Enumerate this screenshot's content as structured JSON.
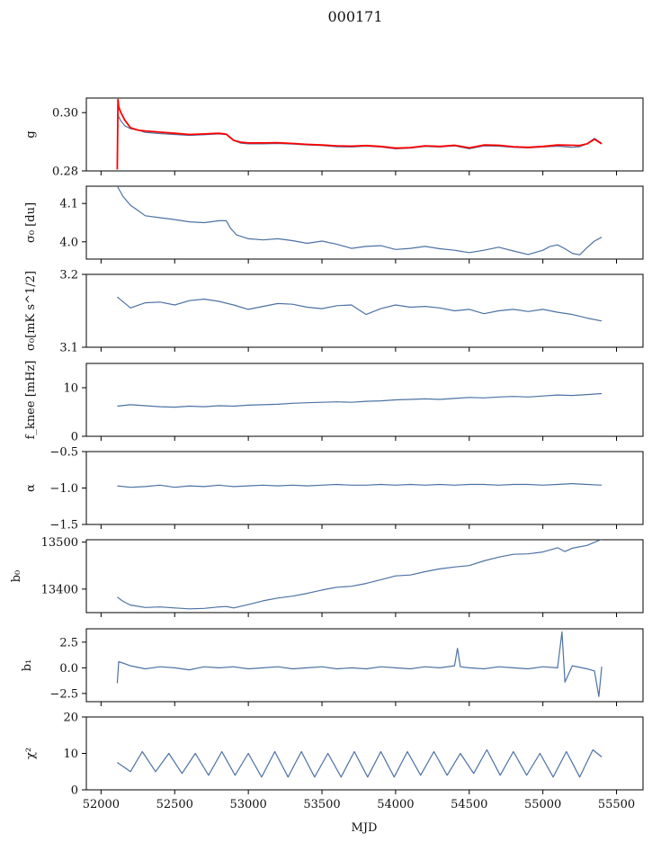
{
  "figure": {
    "title": "000171",
    "xlabel": "MJD",
    "colors": {
      "series": "#4c72a4",
      "reference": "#ff0000"
    }
  },
  "chart_data": [
    {
      "type": "line",
      "id": "g",
      "ylabel": "g",
      "ylim": [
        0.28,
        0.305
      ],
      "yticks": [
        0.28,
        0.3
      ],
      "yticklabels": [
        "0.28",
        "0.30"
      ],
      "xlim": [
        51900,
        55680
      ],
      "xticks": [
        52000,
        52500,
        53000,
        53500,
        54000,
        54500,
        55000,
        55500
      ],
      "series": [
        {
          "color": "#4c72a4",
          "x": [
            52110,
            52130,
            52160,
            52200,
            52250,
            52300,
            52400,
            52500,
            52600,
            52700,
            52800,
            52850,
            52900,
            52950,
            53000,
            53100,
            53200,
            53300,
            53400,
            53500,
            53600,
            53700,
            53800,
            53900,
            54000,
            54100,
            54200,
            54300,
            54400,
            54500,
            54600,
            54700,
            54800,
            54900,
            55000,
            55100,
            55200,
            55250,
            55300,
            55350,
            55400
          ],
          "y": [
            0.2995,
            0.2975,
            0.2955,
            0.2945,
            0.294,
            0.2932,
            0.2928,
            0.2925,
            0.2922,
            0.2924,
            0.2927,
            0.2925,
            0.2905,
            0.2895,
            0.2893,
            0.2893,
            0.2894,
            0.2892,
            0.2889,
            0.2887,
            0.2883,
            0.2882,
            0.2885,
            0.2882,
            0.2876,
            0.2878,
            0.2884,
            0.2882,
            0.2886,
            0.2876,
            0.2886,
            0.2885,
            0.2881,
            0.2879,
            0.2882,
            0.2885,
            0.2881,
            0.2883,
            0.2893,
            0.2912,
            0.2895
          ]
        },
        {
          "color": "#ff0000",
          "x": [
            52110,
            52115,
            52120,
            52130,
            52160,
            52200,
            52250,
            52300,
            52400,
            52500,
            52600,
            52700,
            52800,
            52850,
            52900,
            52950,
            53000,
            53100,
            53200,
            53300,
            53400,
            53500,
            53600,
            53700,
            53800,
            53900,
            54000,
            54100,
            54200,
            54300,
            54400,
            54500,
            54600,
            54700,
            54800,
            54900,
            55000,
            55100,
            55200,
            55250,
            55300,
            55350,
            55400
          ],
          "y": [
            0.2805,
            0.3045,
            0.302,
            0.3005,
            0.2975,
            0.2948,
            0.294,
            0.2937,
            0.2933,
            0.2929,
            0.2925,
            0.2927,
            0.2929,
            0.2926,
            0.2905,
            0.2898,
            0.2896,
            0.2896,
            0.2897,
            0.2894,
            0.2891,
            0.2889,
            0.2886,
            0.2885,
            0.2887,
            0.2884,
            0.2878,
            0.288,
            0.2886,
            0.2884,
            0.2888,
            0.2879,
            0.2889,
            0.2888,
            0.2883,
            0.2881,
            0.2884,
            0.2889,
            0.2888,
            0.2887,
            0.2893,
            0.2909,
            0.2893
          ]
        }
      ]
    },
    {
      "type": "line",
      "id": "sigma0",
      "ylabel": "σ₀ [du]",
      "ylim": [
        3.955,
        4.145
      ],
      "yticks": [
        4.0,
        4.1
      ],
      "yticklabels": [
        "4.0",
        "4.1"
      ],
      "xlim": [
        51900,
        55680
      ],
      "xticks": [
        52000,
        52500,
        53000,
        53500,
        54000,
        54500,
        55000,
        55500
      ],
      "series": [
        {
          "color": "#4c72a4",
          "x": [
            52110,
            52150,
            52200,
            52250,
            52300,
            52400,
            52500,
            52600,
            52700,
            52800,
            52850,
            52880,
            52920,
            53000,
            53100,
            53200,
            53300,
            53400,
            53500,
            53600,
            53700,
            53800,
            53900,
            54000,
            54100,
            54200,
            54300,
            54400,
            54500,
            54600,
            54700,
            54800,
            54900,
            55000,
            55050,
            55100,
            55150,
            55200,
            55250,
            55300,
            55350,
            55400
          ],
          "y": [
            4.145,
            4.118,
            4.095,
            4.082,
            4.068,
            4.063,
            4.058,
            4.052,
            4.05,
            4.055,
            4.055,
            4.035,
            4.018,
            4.008,
            4.005,
            4.008,
            4.003,
            3.996,
            4.002,
            3.994,
            3.983,
            3.988,
            3.99,
            3.98,
            3.983,
            3.988,
            3.982,
            3.978,
            3.972,
            3.978,
            3.986,
            3.976,
            3.967,
            3.978,
            3.988,
            3.992,
            3.982,
            3.97,
            3.966,
            3.985,
            4.002,
            4.012
          ]
        }
      ]
    },
    {
      "type": "line",
      "id": "sigma0-mk",
      "ylabel": "σ₀[mK s^1/2]",
      "ylim": [
        3.1,
        3.2
      ],
      "yticks": [
        3.1,
        3.2
      ],
      "yticklabels": [
        "3.1",
        "3.2"
      ],
      "xlim": [
        51900,
        55680
      ],
      "xticks": [
        52000,
        52500,
        53000,
        53500,
        54000,
        54500,
        55000,
        55500
      ],
      "series": [
        {
          "color": "#4c72a4",
          "x": [
            52110,
            52200,
            52300,
            52400,
            52500,
            52600,
            52700,
            52800,
            52900,
            53000,
            53100,
            53200,
            53300,
            53400,
            53500,
            53600,
            53700,
            53800,
            53900,
            54000,
            54100,
            54200,
            54300,
            54400,
            54500,
            54600,
            54700,
            54800,
            54900,
            55000,
            55100,
            55200,
            55300,
            55400
          ],
          "y": [
            3.169,
            3.154,
            3.161,
            3.162,
            3.158,
            3.164,
            3.166,
            3.163,
            3.158,
            3.152,
            3.156,
            3.16,
            3.159,
            3.155,
            3.153,
            3.157,
            3.158,
            3.145,
            3.153,
            3.158,
            3.155,
            3.156,
            3.154,
            3.15,
            3.152,
            3.146,
            3.15,
            3.152,
            3.149,
            3.152,
            3.148,
            3.145,
            3.14,
            3.136
          ]
        }
      ]
    },
    {
      "type": "line",
      "id": "fknee",
      "ylabel": "f_knee [mHz]",
      "ylim": [
        0,
        15
      ],
      "yticks": [
        0,
        10
      ],
      "yticklabels": [
        "0",
        "10"
      ],
      "xlim": [
        51900,
        55680
      ],
      "xticks": [
        52000,
        52500,
        53000,
        53500,
        54000,
        54500,
        55000,
        55500
      ],
      "series": [
        {
          "color": "#4c72a4",
          "x": [
            52110,
            52200,
            52300,
            52400,
            52500,
            52600,
            52700,
            52800,
            52900,
            53000,
            53100,
            53200,
            53300,
            53400,
            53500,
            53600,
            53700,
            53800,
            53900,
            54000,
            54100,
            54200,
            54300,
            54400,
            54500,
            54600,
            54700,
            54800,
            54900,
            55000,
            55100,
            55200,
            55300,
            55400
          ],
          "y": [
            6.2,
            6.5,
            6.3,
            6.1,
            6.0,
            6.2,
            6.1,
            6.3,
            6.2,
            6.4,
            6.5,
            6.6,
            6.8,
            6.9,
            7.0,
            7.1,
            7.0,
            7.2,
            7.3,
            7.5,
            7.6,
            7.7,
            7.6,
            7.8,
            8.0,
            7.9,
            8.1,
            8.2,
            8.1,
            8.3,
            8.5,
            8.4,
            8.6,
            8.8
          ]
        }
      ]
    },
    {
      "type": "line",
      "id": "alpha",
      "ylabel": "α",
      "ylim": [
        -1.5,
        -0.5
      ],
      "yticks": [
        -1.5,
        -1.0,
        -0.5
      ],
      "yticklabels": [
        "−1.5",
        "−1.0",
        "−0.5"
      ],
      "xlim": [
        51900,
        55680
      ],
      "xticks": [
        52000,
        52500,
        53000,
        53500,
        54000,
        54500,
        55000,
        55500
      ],
      "series": [
        {
          "color": "#4c72a4",
          "x": [
            52110,
            52200,
            52300,
            52400,
            52500,
            52600,
            52700,
            52800,
            52900,
            53000,
            53100,
            53200,
            53300,
            53400,
            53500,
            53600,
            53700,
            53800,
            53900,
            54000,
            54100,
            54200,
            54300,
            54400,
            54500,
            54600,
            54700,
            54800,
            54900,
            55000,
            55100,
            55200,
            55300,
            55400
          ],
          "y": [
            -0.97,
            -0.99,
            -0.98,
            -0.96,
            -0.99,
            -0.97,
            -0.98,
            -0.96,
            -0.98,
            -0.97,
            -0.96,
            -0.97,
            -0.96,
            -0.97,
            -0.96,
            -0.95,
            -0.96,
            -0.96,
            -0.95,
            -0.96,
            -0.95,
            -0.96,
            -0.95,
            -0.96,
            -0.95,
            -0.95,
            -0.96,
            -0.95,
            -0.95,
            -0.96,
            -0.95,
            -0.94,
            -0.95,
            -0.96
          ]
        }
      ]
    },
    {
      "type": "line",
      "id": "b0",
      "ylabel": "b₀",
      "ylim": [
        13350,
        13505
      ],
      "yticks": [
        13400,
        13500
      ],
      "yticklabels": [
        "13400",
        "13500"
      ],
      "xlim": [
        51900,
        55680
      ],
      "xticks": [
        52000,
        52500,
        53000,
        53500,
        54000,
        54500,
        55000,
        55500
      ],
      "series": [
        {
          "color": "#4c72a4",
          "x": [
            52110,
            52150,
            52200,
            52300,
            52400,
            52500,
            52600,
            52700,
            52800,
            52850,
            52900,
            53000,
            53100,
            53200,
            53300,
            53400,
            53500,
            53600,
            53700,
            53800,
            53900,
            54000,
            54100,
            54200,
            54300,
            54400,
            54500,
            54600,
            54700,
            54800,
            54900,
            55000,
            55100,
            55150,
            55200,
            55300,
            55400
          ],
          "y": [
            13383,
            13374,
            13366,
            13361,
            13362,
            13360,
            13358,
            13359,
            13362,
            13363,
            13360,
            13367,
            13375,
            13381,
            13385,
            13391,
            13398,
            13404,
            13406,
            13412,
            13420,
            13428,
            13430,
            13437,
            13443,
            13447,
            13450,
            13460,
            13468,
            13474,
            13475,
            13479,
            13488,
            13480,
            13487,
            13493,
            13506
          ]
        }
      ]
    },
    {
      "type": "line",
      "id": "b1",
      "ylabel": "b₁",
      "ylim": [
        -3.3,
        3.8
      ],
      "yticks": [
        -2.5,
        0.0,
        2.5
      ],
      "yticklabels": [
        "−2.5",
        "0.0",
        "2.5"
      ],
      "xlim": [
        51900,
        55680
      ],
      "xticks": [
        52000,
        52500,
        53000,
        53500,
        54000,
        54500,
        55000,
        55500
      ],
      "series": [
        {
          "color": "#4c72a4",
          "x": [
            52110,
            52120,
            52200,
            52300,
            52400,
            52500,
            52600,
            52700,
            52800,
            52900,
            53000,
            53100,
            53200,
            53300,
            53400,
            53500,
            53600,
            53700,
            53800,
            53900,
            54000,
            54100,
            54200,
            54300,
            54400,
            54420,
            54440,
            54500,
            54600,
            54700,
            54800,
            54900,
            55000,
            55100,
            55130,
            55150,
            55200,
            55300,
            55350,
            55380,
            55400
          ],
          "y": [
            -1.5,
            0.6,
            0.2,
            -0.1,
            0.1,
            0.0,
            -0.2,
            0.1,
            0.0,
            0.1,
            -0.1,
            0.0,
            0.1,
            -0.1,
            0.0,
            0.1,
            -0.1,
            0.0,
            -0.1,
            0.1,
            0.0,
            -0.1,
            0.1,
            0.0,
            0.2,
            1.9,
            0.1,
            0.0,
            -0.1,
            0.1,
            0.0,
            -0.1,
            0.1,
            0.0,
            3.5,
            -1.4,
            0.2,
            -0.1,
            -0.3,
            -2.8,
            0.1
          ]
        }
      ]
    },
    {
      "type": "line",
      "id": "chi2",
      "ylabel": "χ²",
      "ylim": [
        0,
        20
      ],
      "yticks": [
        0,
        10,
        20
      ],
      "yticklabels": [
        "0",
        "10",
        "20"
      ],
      "xlim": [
        51900,
        55680
      ],
      "xticks": [
        52000,
        52500,
        53000,
        53500,
        54000,
        54500,
        55000,
        55500
      ],
      "xticklabels": [
        "52000",
        "52500",
        "53000",
        "53500",
        "54000",
        "54500",
        "55000",
        "55500"
      ],
      "series": [
        {
          "color": "#4c72a4",
          "x": [
            52110,
            52200,
            52280,
            52370,
            52460,
            52550,
            52640,
            52730,
            52820,
            52910,
            53000,
            53090,
            53180,
            53270,
            53360,
            53450,
            53540,
            53630,
            53720,
            53810,
            53900,
            53990,
            54080,
            54170,
            54260,
            54350,
            54440,
            54530,
            54620,
            54710,
            54800,
            54890,
            54980,
            55070,
            55160,
            55250,
            55340,
            55400
          ],
          "y": [
            7.5,
            5.0,
            10.5,
            5.0,
            10.0,
            4.5,
            10.0,
            4.0,
            10.5,
            4.0,
            10.0,
            3.5,
            10.5,
            3.5,
            10.5,
            3.5,
            10.0,
            3.5,
            10.5,
            3.5,
            10.5,
            3.5,
            10.5,
            4.0,
            10.5,
            4.0,
            10.0,
            4.5,
            11.0,
            4.0,
            10.5,
            4.0,
            10.0,
            3.5,
            10.5,
            3.5,
            11.0,
            9.0
          ]
        }
      ]
    }
  ]
}
